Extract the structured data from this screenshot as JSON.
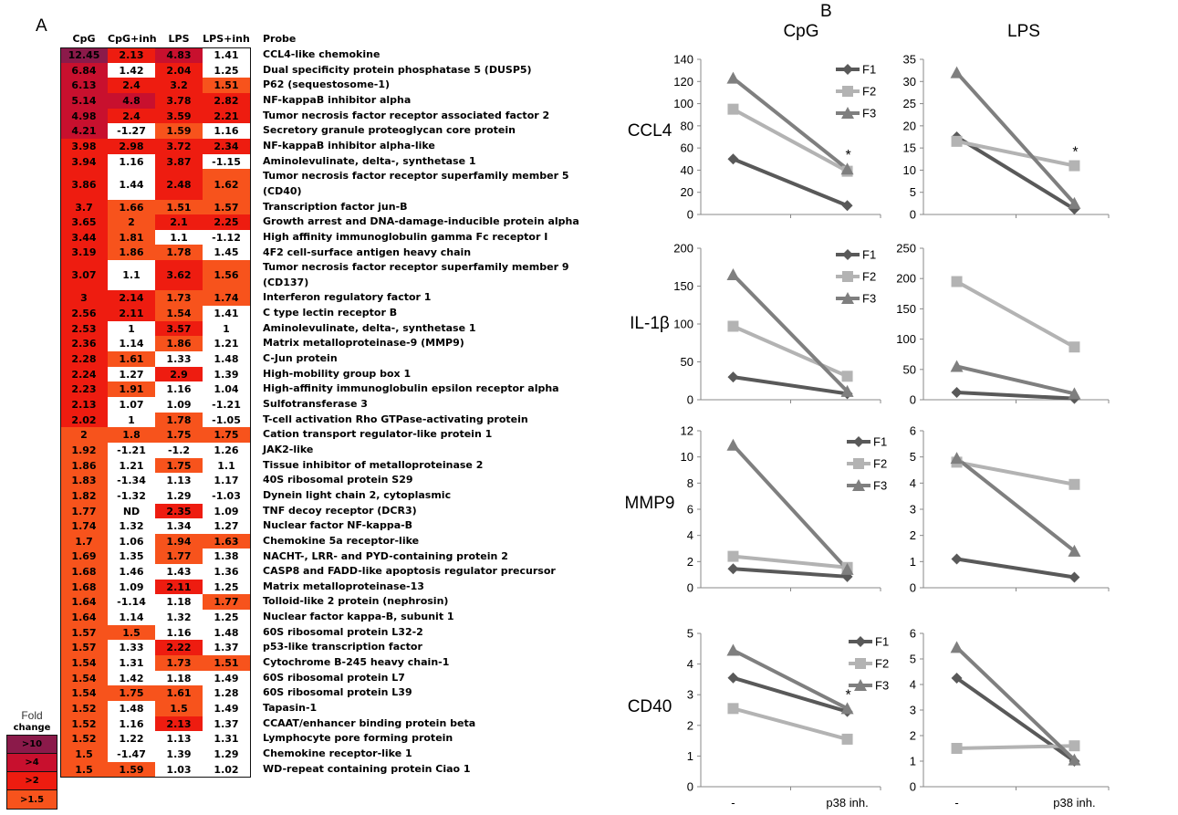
{
  "panel_a_label": "A",
  "panel_b_label": "B",
  "colors": {
    "gt10": "#8b1a4a",
    "gt4": "#c8102e",
    "gt2": "#ee1c10",
    "gt15": "#f7531c",
    "none": "#ffffff"
  },
  "heatmap": {
    "columns": [
      "CpG",
      "CpG+inh",
      "LPS",
      "LPS+inh"
    ],
    "probe_header": "Probe",
    "rows": [
      {
        "probe": "CCL4-like chemokine",
        "values": [
          "12.45",
          "2.13",
          "4.83",
          "1.41"
        ]
      },
      {
        "probe": "Dual specificity protein phosphatase 5 (DUSP5)",
        "values": [
          "6.84",
          "1.42",
          "2.04",
          "1.25"
        ]
      },
      {
        "probe": "P62 (sequestosome-1)",
        "values": [
          "6.13",
          "2.4",
          "3.2",
          "1.51"
        ]
      },
      {
        "probe": "NF-kappaB inhibitor alpha",
        "values": [
          "5.14",
          "4.8",
          "3.78",
          "2.82"
        ]
      },
      {
        "probe": "Tumor necrosis factor receptor associated factor 2",
        "values": [
          "4.98",
          "2.4",
          "3.59",
          "2.21"
        ]
      },
      {
        "probe": "Secretory granule proteoglycan core protein",
        "values": [
          "4.21",
          "-1.27",
          "1.59",
          "1.16"
        ]
      },
      {
        "probe": "NF-kappaB inhibitor alpha-like",
        "values": [
          "3.98",
          "2.98",
          "3.72",
          "2.34"
        ]
      },
      {
        "probe": "Aminolevulinate, delta-, synthetase 1",
        "values": [
          "3.94",
          "1.16",
          "3.87",
          "-1.15"
        ]
      },
      {
        "probe": "Tumor necrosis factor receptor superfamily member 5",
        "probe2": "(CD40)",
        "values": [
          "3.86",
          "1.44",
          "2.48",
          "1.62"
        ]
      },
      {
        "probe": "Transcription factor jun-B",
        "values": [
          "3.7",
          "1.66",
          "1.51",
          "1.57"
        ]
      },
      {
        "probe": "Growth arrest and DNA-damage-inducible protein alpha",
        "values": [
          "3.65",
          "2",
          "2.1",
          "2.25"
        ]
      },
      {
        "probe": "High affinity immunoglobulin gamma Fc receptor I",
        "values": [
          "3.44",
          "1.81",
          "1.1",
          "-1.12"
        ]
      },
      {
        "probe": "4F2 cell-surface antigen heavy chain",
        "values": [
          "3.19",
          "1.86",
          "1.78",
          "1.45"
        ]
      },
      {
        "probe": "Tumor necrosis factor receptor superfamily member 9",
        "probe2": "(CD137)",
        "values": [
          "3.07",
          "1.1",
          "3.62",
          "1.56"
        ]
      },
      {
        "probe": "Interferon regulatory factor 1",
        "values": [
          "3",
          "2.14",
          "1.73",
          "1.74"
        ]
      },
      {
        "probe": "C type lectin receptor B",
        "values": [
          "2.56",
          "2.11",
          "1.54",
          "1.41"
        ]
      },
      {
        "probe": "Aminolevulinate, delta-, synthetase 1",
        "values": [
          "2.53",
          "1",
          "3.57",
          "1"
        ]
      },
      {
        "probe": "Matrix metalloproteinase-9 (MMP9)",
        "values": [
          "2.36",
          "1.14",
          "1.86",
          "1.21"
        ]
      },
      {
        "probe": "C-Jun protein",
        "values": [
          "2.28",
          "1.61",
          "1.33",
          "1.48"
        ]
      },
      {
        "probe": "High-mobility group box 1",
        "values": [
          "2.24",
          "1.27",
          "2.9",
          "1.39"
        ]
      },
      {
        "probe": "High-affinity immunoglobulin epsilon receptor alpha",
        "values": [
          "2.23",
          "1.91",
          "1.16",
          "1.04"
        ]
      },
      {
        "probe": "Sulfotransferase 3",
        "values": [
          "2.13",
          "1.07",
          "1.09",
          "-1.21"
        ]
      },
      {
        "probe": "T-cell activation Rho GTPase-activating protein",
        "values": [
          "2.02",
          "1",
          "1.78",
          "-1.05"
        ]
      },
      {
        "probe": "Cation transport regulator-like protein 1",
        "values": [
          "2",
          "1.8",
          "1.75",
          "1.75"
        ]
      },
      {
        "probe": "JAK2-like",
        "values": [
          "1.92",
          "-1.21",
          "-1.2",
          "1.26"
        ]
      },
      {
        "probe": "Tissue inhibitor of metalloproteinase 2",
        "values": [
          "1.86",
          "1.21",
          "1.75",
          "1.1"
        ]
      },
      {
        "probe": "40S ribosomal protein S29",
        "values": [
          "1.83",
          "-1.34",
          "1.13",
          "1.17"
        ]
      },
      {
        "probe": "Dynein light chain 2, cytoplasmic",
        "values": [
          "1.82",
          "-1.32",
          "1.29",
          "-1.03"
        ]
      },
      {
        "probe": "TNF decoy receptor (DCR3)",
        "values": [
          "1.77",
          "ND",
          "2.35",
          "1.09"
        ]
      },
      {
        "probe": "Nuclear factor NF-kappa-B",
        "values": [
          "1.74",
          "1.32",
          "1.34",
          "1.27"
        ]
      },
      {
        "probe": "Chemokine 5a receptor-like",
        "values": [
          "1.7",
          "1.06",
          "1.94",
          "1.63"
        ]
      },
      {
        "probe": "NACHT-, LRR- and PYD-containing protein 2",
        "values": [
          "1.69",
          "1.35",
          "1.77",
          "1.38"
        ]
      },
      {
        "probe": "CASP8 and FADD-like apoptosis regulator precursor",
        "values": [
          "1.68",
          "1.46",
          "1.43",
          "1.36"
        ]
      },
      {
        "probe": "Matrix metalloproteinase-13",
        "values": [
          "1.68",
          "1.09",
          "2.11",
          "1.25"
        ]
      },
      {
        "probe": "Tolloid-like 2 protein (nephrosin)",
        "values": [
          "1.64",
          "-1.14",
          "1.18",
          "1.77"
        ]
      },
      {
        "probe": "Nuclear factor kappa-B, subunit 1",
        "values": [
          "1.64",
          "1.14",
          "1.32",
          "1.25"
        ]
      },
      {
        "probe": "60S ribosomal protein L32-2",
        "values": [
          "1.57",
          "1.5",
          "1.16",
          "1.48"
        ]
      },
      {
        "probe": "p53-like transcription factor",
        "values": [
          "1.57",
          "1.33",
          "2.22",
          "1.37"
        ]
      },
      {
        "probe": "Cytochrome B-245 heavy chain-1",
        "values": [
          "1.54",
          "1.31",
          "1.73",
          "1.51"
        ]
      },
      {
        "probe": "60S ribosomal protein L7",
        "values": [
          "1.54",
          "1.42",
          "1.18",
          "1.49"
        ]
      },
      {
        "probe": "60S ribosomal protein L39",
        "values": [
          "1.54",
          "1.75",
          "1.61",
          "1.28"
        ]
      },
      {
        "probe": "Tapasin-1",
        "values": [
          "1.52",
          "1.48",
          "1.5",
          "1.49"
        ]
      },
      {
        "probe": "CCAAT/enhancer binding protein beta",
        "values": [
          "1.52",
          "1.16",
          "2.13",
          "1.37"
        ]
      },
      {
        "probe": "Lymphocyte pore forming protein",
        "values": [
          "1.52",
          "1.22",
          "1.13",
          "1.31"
        ]
      },
      {
        "probe": "Chemokine receptor-like 1",
        "values": [
          "1.5",
          "-1.47",
          "1.39",
          "1.29"
        ]
      },
      {
        "probe": "WD-repeat containing protein Ciao 1",
        "values": [
          "1.5",
          "1.59",
          "1.03",
          "1.02"
        ]
      }
    ]
  },
  "legend": {
    "title_line1": "Fold",
    "title_line2": "change",
    "items": [
      ">10",
      ">4",
      ">2",
      ">1.5"
    ]
  },
  "panel_b": {
    "col_titles": [
      "CpG",
      "LPS"
    ],
    "row_labels": [
      "CCL4",
      "IL-1β",
      "MMP9",
      "CD40"
    ],
    "x_categories": [
      "-",
      "p38 inh."
    ],
    "series_names": [
      "F1",
      "F2",
      "F3"
    ],
    "series_colors": [
      "#595959",
      "#b3b3b3",
      "#7f7f7f"
    ]
  },
  "chart_data": [
    {
      "type": "line",
      "gene": "CCL4",
      "stimulus": "CpG",
      "categories": [
        "-",
        "p38 inh."
      ],
      "ylim": [
        0,
        140
      ],
      "yticks": [
        0,
        20,
        40,
        60,
        80,
        100,
        120,
        140
      ],
      "legend": "top-right",
      "annotation": "*",
      "annotation_at": 1,
      "series": [
        {
          "name": "F1",
          "values": [
            50,
            8
          ]
        },
        {
          "name": "F2",
          "values": [
            95,
            39
          ]
        },
        {
          "name": "F3",
          "values": [
            123,
            41
          ]
        }
      ]
    },
    {
      "type": "line",
      "gene": "CCL4",
      "stimulus": "LPS",
      "categories": [
        "-",
        "p38 inh."
      ],
      "ylim": [
        0,
        35
      ],
      "yticks": [
        0,
        5,
        10,
        15,
        20,
        25,
        30,
        35
      ],
      "legend": "none",
      "annotation": "*",
      "annotation_at": 1,
      "series": [
        {
          "values": [
            17.5,
            1.2
          ]
        },
        {
          "values": [
            16.5,
            11
          ]
        },
        {
          "values": [
            32,
            2.5
          ]
        }
      ]
    },
    {
      "type": "line",
      "gene": "IL-1β",
      "stimulus": "CpG",
      "categories": [
        "-",
        "p38 inh."
      ],
      "ylim": [
        0,
        200
      ],
      "yticks": [
        0,
        50,
        100,
        150,
        200
      ],
      "legend": "top-right",
      "series": [
        {
          "name": "F1",
          "values": [
            30,
            8
          ]
        },
        {
          "name": "F2",
          "values": [
            97,
            31
          ]
        },
        {
          "name": "F3",
          "values": [
            165,
            11
          ]
        }
      ]
    },
    {
      "type": "line",
      "gene": "IL-1β",
      "stimulus": "LPS",
      "categories": [
        "-",
        "p38 inh."
      ],
      "ylim": [
        0,
        250
      ],
      "yticks": [
        0,
        50,
        100,
        150,
        200,
        250
      ],
      "legend": "none",
      "series": [
        {
          "values": [
            12,
            2
          ]
        },
        {
          "values": [
            195,
            87
          ]
        },
        {
          "values": [
            55,
            10
          ]
        }
      ]
    },
    {
      "type": "line",
      "gene": "MMP9",
      "stimulus": "CpG",
      "categories": [
        "-",
        "p38 inh."
      ],
      "ylim": [
        0,
        12
      ],
      "yticks": [
        0,
        2,
        4,
        6,
        8,
        10,
        12
      ],
      "legend": "top-right",
      "series": [
        {
          "name": "F1",
          "values": [
            1.45,
            0.85
          ]
        },
        {
          "name": "F2",
          "values": [
            2.4,
            1.55
          ]
        },
        {
          "name": "F3",
          "values": [
            10.9,
            1.4
          ]
        }
      ]
    },
    {
      "type": "line",
      "gene": "MMP9",
      "stimulus": "LPS",
      "categories": [
        "-",
        "p38 inh."
      ],
      "ylim": [
        0,
        6
      ],
      "yticks": [
        0,
        1,
        2,
        3,
        4,
        5,
        6
      ],
      "legend": "none",
      "series": [
        {
          "values": [
            1.1,
            0.4
          ]
        },
        {
          "values": [
            4.8,
            3.95
          ]
        },
        {
          "values": [
            4.95,
            1.4
          ]
        }
      ]
    },
    {
      "type": "line",
      "gene": "CD40",
      "stimulus": "CpG",
      "categories": [
        "-",
        "p38 inh."
      ],
      "ylim": [
        0,
        5
      ],
      "yticks": [
        0,
        1,
        2,
        3,
        4,
        5
      ],
      "legend": "top-right",
      "annotation": "*",
      "annotation_at": 1,
      "series": [
        {
          "name": "F1",
          "values": [
            3.55,
            2.45
          ]
        },
        {
          "name": "F2",
          "values": [
            2.55,
            1.55
          ]
        },
        {
          "name": "F3",
          "values": [
            4.45,
            2.55
          ]
        }
      ]
    },
    {
      "type": "line",
      "gene": "CD40",
      "stimulus": "LPS",
      "categories": [
        "-",
        "p38 inh."
      ],
      "ylim": [
        0,
        6
      ],
      "yticks": [
        0,
        1,
        2,
        3,
        4,
        5,
        6
      ],
      "legend": "none",
      "series": [
        {
          "values": [
            4.25,
            1.0
          ]
        },
        {
          "values": [
            1.5,
            1.6
          ]
        },
        {
          "values": [
            5.45,
            1.05
          ]
        }
      ]
    }
  ]
}
